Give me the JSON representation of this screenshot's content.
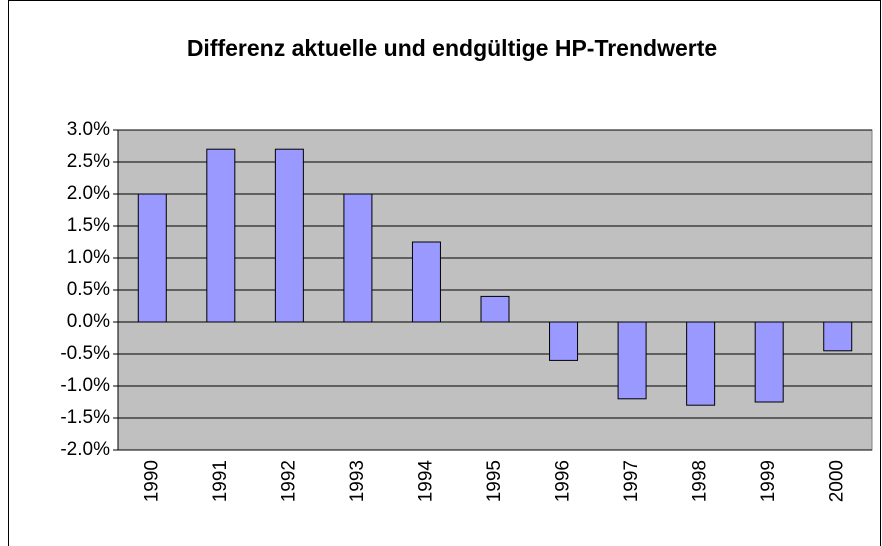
{
  "chart_data": {
    "type": "bar",
    "title": "Differenz aktuelle und endgültige HP-Trendwerte",
    "categories": [
      "1990",
      "1991",
      "1992",
      "1993",
      "1994",
      "1995",
      "1996",
      "1997",
      "1998",
      "1999",
      "2000"
    ],
    "values": [
      2.0,
      2.7,
      2.7,
      2.0,
      1.25,
      0.4,
      -0.6,
      -1.2,
      -1.3,
      -1.25,
      -0.45
    ],
    "color": "#9999ff",
    "plot_background": "#c0c0c0",
    "ylim": [
      -2,
      3
    ],
    "yticks": [
      {
        "value": -2,
        "label": "-2.0%"
      },
      {
        "value": -1.5,
        "label": "-1.5%"
      },
      {
        "value": -1,
        "label": "-1.0%"
      },
      {
        "value": -0.5,
        "label": "-0.5%"
      },
      {
        "value": 0,
        "label": "0.0%"
      },
      {
        "value": 0.5,
        "label": "0.5%"
      },
      {
        "value": 1,
        "label": "1.0%"
      },
      {
        "value": 1.5,
        "label": "1.5%"
      },
      {
        "value": 2,
        "label": "2.0%"
      },
      {
        "value": 2.5,
        "label": "2.5%"
      },
      {
        "value": 3,
        "label": "3.0%"
      }
    ],
    "grid": true
  }
}
